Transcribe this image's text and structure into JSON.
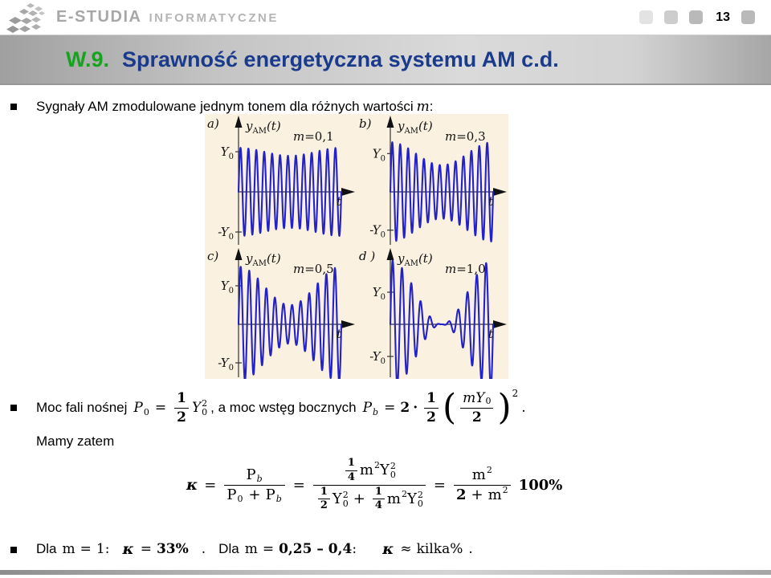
{
  "header": {
    "brand_primary": "E-STUDIA",
    "brand_secondary": "INFORMATYCZNE",
    "page_number": "13"
  },
  "title": {
    "prefix": "W.9.",
    "text": "Sprawność energetyczna systemu AM c.d.",
    "prefix_color": "#17a41d",
    "text_color": "#1a3a8c"
  },
  "bullets": {
    "b1": {
      "text": "Sygnały AM zmodulowane jednym tonem dla różnych wartości",
      "var": "m",
      "tail": ":"
    },
    "b2": {
      "lead": "Moc fali nośnej",
      "mid": ", a moc wstęg bocznych"
    },
    "b3": {
      "dla1": "Dla",
      "m1": "m",
      "eq1": "=",
      "v1": "1",
      "c1": ":",
      "k1": "κ",
      "eq2": "=",
      "v2": "33%",
      "p1": ".",
      "dla2": "Dla",
      "m2": "m",
      "eq3": "=",
      "v3": "0,25 – 0,4",
      "c2": ":",
      "k2": "κ",
      "ap": "≈",
      "v4": "kilka%",
      "p2": "."
    }
  },
  "mamy": "Mamy zatem",
  "figure": {
    "bg": "#faf1e0",
    "wave_color": "#2222c8",
    "axis": {
      "y_base": "y",
      "y_sub": "AM",
      "y_arg": "(t)",
      "y0_base": "Y",
      "y0_sub": "0",
      "neg_y0_base": "-Y",
      "neg_y0_sub": "0",
      "t": "t"
    },
    "panels": [
      {
        "tag": "a)",
        "m_var": "m",
        "m_val": "=0,1",
        "m": 0.1,
        "cycles": 13,
        "peak": 55
      },
      {
        "tag": "b)",
        "m_var": "m",
        "m_val": "=0,3",
        "m": 0.3,
        "cycles": 13,
        "peak": 62
      },
      {
        "tag": "c)",
        "m_var": "m",
        "m_val": "=0,5",
        "m": 0.5,
        "cycles": 12,
        "peak": 72
      },
      {
        "tag": "d )",
        "m_var": "m",
        "m_val": "=1,0",
        "m": 1.0,
        "cycles": 11,
        "peak": 80
      }
    ]
  },
  "formulas": {
    "p0": {
      "P": "P",
      "sub": "0",
      "eq": "=",
      "n": "1",
      "d": "2",
      "Y": "Y",
      "ysup": "2",
      "ysub": "0",
      "comma": ","
    },
    "pb": {
      "P": "P",
      "sub": "b",
      "eq": "=",
      "two": "2",
      "dot": "·",
      "n": "1",
      "d": "2",
      "lp": "(",
      "m": "m",
      "Y": "Y",
      "ysub": "0",
      "den": "2",
      "rp": ")",
      "sup": "2",
      "dot_end": "."
    },
    "main": {
      "kappa": "κ",
      "eq1": "=",
      "P": "P",
      "sb_b": "b",
      "sb_0": "0",
      "plus": "+",
      "eq2": "=",
      "one": "1",
      "four": "4",
      "two": "2",
      "m": "m",
      "two_sup": "2",
      "Y": "Y",
      "zero_sub": "0",
      "eq3": "=",
      "pct": "100%"
    }
  }
}
